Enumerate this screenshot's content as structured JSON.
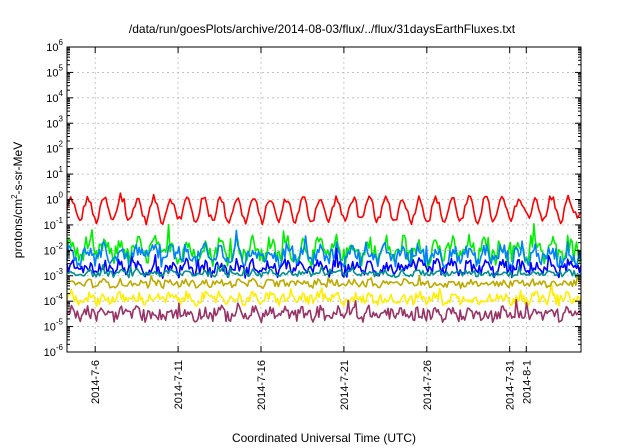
{
  "chart_data": {
    "type": "line",
    "title": "/data/run/goesPlots/archive/2014-08-03/flux/../flux/31daysEarthFluxes.txt",
    "xlabel": "Coordinated Universal Time (UTC)",
    "ylabel_parts": [
      "protons/cm",
      "2",
      "-s-sr-MeV"
    ],
    "y_scale": "log",
    "ylim_exponents": [
      -6,
      6
    ],
    "y_ticks": [
      {
        "base": "10",
        "exp": "-6"
      },
      {
        "base": "10",
        "exp": "-5"
      },
      {
        "base": "10",
        "exp": "-4"
      },
      {
        "base": "10",
        "exp": "-3"
      },
      {
        "base": "10",
        "exp": "-2"
      },
      {
        "base": "10",
        "exp": "-1"
      },
      {
        "base": "10",
        "exp": "0"
      },
      {
        "base": "10",
        "exp": "1"
      },
      {
        "base": "10",
        "exp": "2"
      },
      {
        "base": "10",
        "exp": "3"
      },
      {
        "base": "10",
        "exp": "4"
      },
      {
        "base": "10",
        "exp": "5"
      },
      {
        "base": "10",
        "exp": "6"
      }
    ],
    "xlim_days": [
      0,
      31
    ],
    "x_ticks": [
      {
        "label": "2014-7-6",
        "day": 1.7
      },
      {
        "label": "2014-7-11",
        "day": 6.7
      },
      {
        "label": "2014-7-16",
        "day": 11.7
      },
      {
        "label": "2014-7-21",
        "day": 16.7
      },
      {
        "label": "2014-7-26",
        "day": 21.7
      },
      {
        "label": "2014-7-31",
        "day": 26.7
      },
      {
        "label": "2014-8-1",
        "day": 27.7
      }
    ],
    "grid": true,
    "series": [
      {
        "color": "#ff0000",
        "base_log10": -0.4,
        "amp_log10": 0.45,
        "noise_log10": 0.15,
        "n": 280
      },
      {
        "color": "#00ee00",
        "base_log10": -2.0,
        "amp_log10": 0.3,
        "noise_log10": 0.35,
        "n": 350
      },
      {
        "color": "#0080ff",
        "base_log10": -2.2,
        "amp_log10": 0.25,
        "noise_log10": 0.3,
        "n": 350
      },
      {
        "color": "#0000ff",
        "base_log10": -2.7,
        "amp_log10": 0.15,
        "noise_log10": 0.25,
        "n": 350
      },
      {
        "color": "#009090",
        "base_log10": -2.9,
        "amp_log10": 0.05,
        "noise_log10": 0.12,
        "n": 300
      },
      {
        "color": "#ffee00",
        "base_log10": -3.9,
        "amp_log10": 0.08,
        "noise_log10": 0.22,
        "n": 350
      },
      {
        "color": "#bbaa00",
        "base_log10": -3.3,
        "amp_log10": 0.05,
        "noise_log10": 0.15,
        "n": 300
      },
      {
        "color": "#993366",
        "base_log10": -4.5,
        "amp_log10": 0.1,
        "noise_log10": 0.25,
        "n": 350
      }
    ]
  }
}
